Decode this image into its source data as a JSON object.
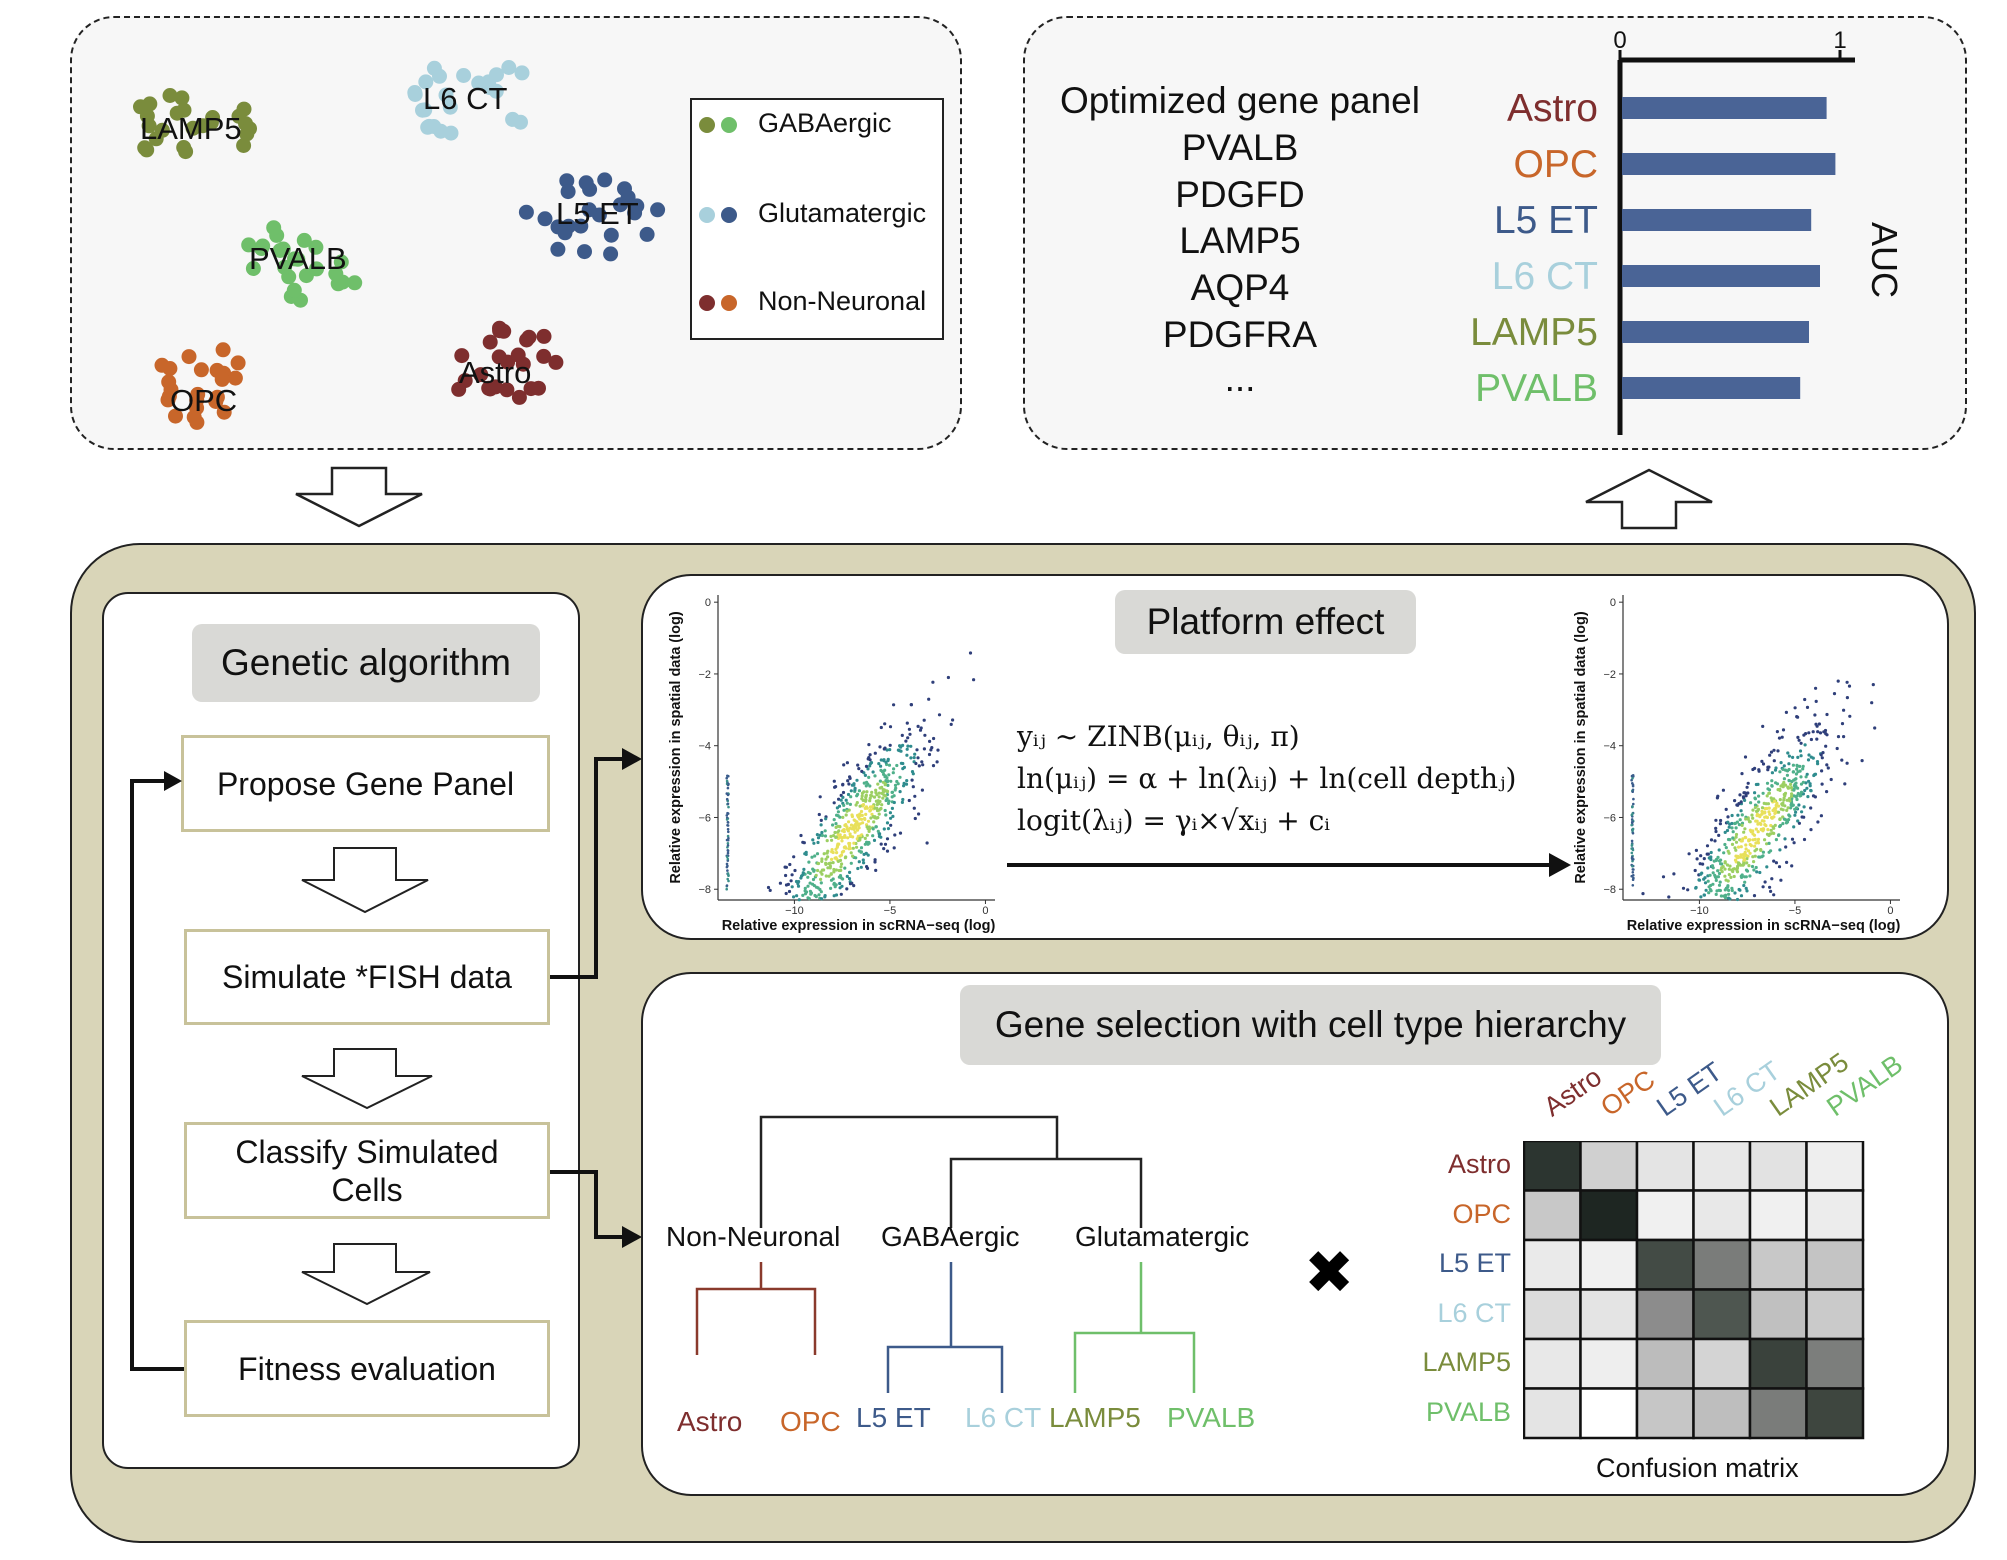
{
  "colors": {
    "gabaergic_dark": "#7a8c3c",
    "gabaergic_light": "#6fbf6a",
    "glutamatergic_light": "#a8d0dc",
    "glutamatergic_dark": "#3d5a8a",
    "non_neuronal_dark": "#7e2e2e",
    "non_neuronal_light": "#c8662a",
    "panel_bg": "#d9d5b8",
    "bar": "#4a6496"
  },
  "top_left": {
    "clusters": [
      {
        "label": "LAMP5",
        "color": "#7a8c3c"
      },
      {
        "label": "L6 CT",
        "color": "#a8d0dc"
      },
      {
        "label": "L5 ET",
        "color": "#3d5a8a"
      },
      {
        "label": "PVALB",
        "color": "#6fbf6a"
      },
      {
        "label": "Astro",
        "color": "#7e2e2e"
      },
      {
        "label": "OPC",
        "color": "#c8662a"
      }
    ],
    "legend": [
      {
        "label": "GABAergic",
        "colors": [
          "#7a8c3c",
          "#6fbf6a"
        ]
      },
      {
        "label": "Glutamatergic",
        "colors": [
          "#a8d0dc",
          "#3d5a8a"
        ]
      },
      {
        "label": "Non-Neuronal",
        "colors": [
          "#7e2e2e",
          "#c8662a"
        ]
      }
    ]
  },
  "top_right": {
    "gene_panel_lines": [
      "Optimized gene panel",
      "PVALB",
      "PDGFD",
      "LAMP5",
      "AQP4",
      "PDGFRA",
      "..."
    ]
  },
  "chart_data": {
    "type": "bar",
    "orientation": "horizontal",
    "categories": [
      "Astro",
      "OPC",
      "L5 ET",
      "L6 CT",
      "LAMP5",
      "PVALB"
    ],
    "category_colors": [
      "#7e2e2e",
      "#c8662a",
      "#3d5a8a",
      "#a8d0dc",
      "#7a8c3c",
      "#6fbf6a"
    ],
    "values": [
      0.93,
      0.97,
      0.86,
      0.9,
      0.85,
      0.81
    ],
    "xlabel": "AUC",
    "xlim": [
      0,
      1
    ],
    "xticks": [
      "0",
      "1"
    ]
  },
  "bottom": {
    "genetic_algorithm": {
      "title": "Genetic algorithm",
      "steps": [
        "Propose Gene Panel",
        "Simulate *FISH data",
        "Classify Simulated Cells",
        "Fitness evaluation"
      ]
    },
    "platform_effect": {
      "title": "Platform effect",
      "scatter_xlabel": "Relative expression in scRNA−seq (log)",
      "scatter_ylabel": "Relative expression in spatial data (log)",
      "scatter_xticks": [
        "−10",
        "−5",
        "0"
      ],
      "scatter_yticks": [
        "0",
        "−2",
        "−4",
        "−6",
        "−8"
      ],
      "formula_lines": [
        "yᵢⱼ ~ ZINB(μᵢⱼ, θᵢⱼ, π)",
        "ln(μᵢⱼ) = α + ln(λᵢⱼ) + ln(cell depthⱼ)",
        "logit(λᵢⱼ) = γᵢ×√xᵢⱼ + cᵢ"
      ]
    },
    "hierarchy": {
      "title": "Gene selection with cell type hierarchy",
      "groups": [
        "Non-Neuronal",
        "GABAergic",
        "Glutamatergic"
      ],
      "leaves": [
        {
          "label": "Astro",
          "color": "#7e2e2e"
        },
        {
          "label": "OPC",
          "color": "#c8662a"
        },
        {
          "label": "L5 ET",
          "color": "#3d5a8a"
        },
        {
          "label": "L6 CT",
          "color": "#a8d0dc"
        },
        {
          "label": "LAMP5",
          "color": "#7a8c3c"
        },
        {
          "label": "PVALB",
          "color": "#6fbf6a"
        }
      ],
      "times_symbol": "✖",
      "confusion_matrix": {
        "caption": "Confusion matrix",
        "labels": [
          "Astro",
          "OPC",
          "L5 ET",
          "L6 CT",
          "LAMP5",
          "PVALB"
        ],
        "label_colors": [
          "#7e2e2e",
          "#c8662a",
          "#3d5a8a",
          "#a8d0dc",
          "#7a8c3c",
          "#6fbf6a"
        ],
        "shades": [
          [
            "#2c3530",
            "#d0d0d0",
            "#e4e4e4",
            "#e8e8e8",
            "#e2e2e2",
            "#eeeeee"
          ],
          [
            "#c8c8c8",
            "#1e2622",
            "#f0f0f0",
            "#e8e8e8",
            "#f0f0f0",
            "#ececec"
          ],
          [
            "#eaeaea",
            "#f0f0f0",
            "#434b45",
            "#7a7c7a",
            "#c8c8c8",
            "#c4c4c4"
          ],
          [
            "#dcdcdc",
            "#e4e4e4",
            "#8c8c8c",
            "#4e5650",
            "#c0c0c0",
            "#cacaca"
          ],
          [
            "#e8e8e8",
            "#eeeeee",
            "#bcbcbc",
            "#d4d4d4",
            "#3a423c",
            "#7c7e7c"
          ],
          [
            "#e4e4e4",
            "#ffffff",
            "#c6c6c6",
            "#bebebe",
            "#7a7c7a",
            "#3e463f"
          ]
        ]
      }
    }
  }
}
